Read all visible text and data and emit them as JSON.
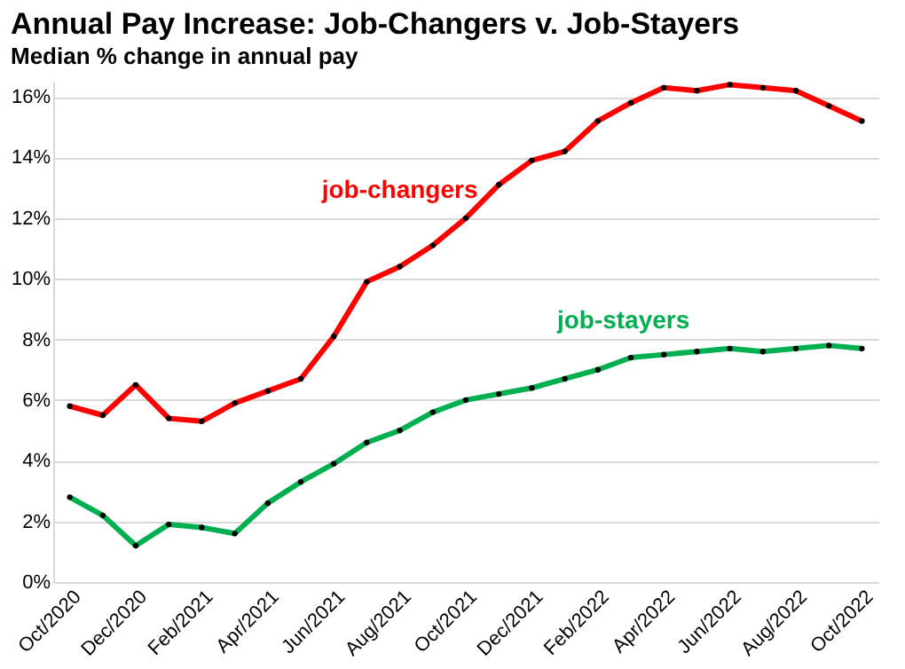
{
  "chart_data": {
    "type": "line",
    "title": "Annual Pay Increase: Job-Changers v. Job-Stayers",
    "subtitle": "Median % change in annual pay",
    "categories": [
      "Oct/2020",
      null,
      "Dec/2020",
      null,
      "Feb/2021",
      null,
      "Apr/2021",
      null,
      "Jun/2021",
      null,
      "Aug/2021",
      null,
      "Oct/2021",
      null,
      "Dec/2021",
      null,
      "Feb/2022",
      null,
      "Apr/2022",
      null,
      "Jun/2022",
      null,
      "Aug/2022",
      null,
      "Oct/2022"
    ],
    "series": [
      {
        "name": "job-changers",
        "color": "#ff0000",
        "values": [
          5.8,
          5.5,
          6.5,
          5.4,
          5.3,
          5.9,
          6.3,
          6.7,
          8.1,
          9.9,
          10.4,
          11.1,
          12.0,
          13.1,
          13.9,
          14.2,
          15.2,
          15.8,
          16.3,
          16.2,
          16.4,
          16.3,
          16.2,
          15.7,
          15.2
        ]
      },
      {
        "name": "job-stayers",
        "color": "#00b050",
        "values": [
          2.8,
          2.2,
          1.2,
          1.9,
          1.8,
          1.6,
          2.6,
          3.3,
          3.9,
          4.6,
          5.0,
          5.6,
          6.0,
          6.2,
          6.4,
          6.7,
          7.0,
          7.4,
          7.5,
          7.6,
          7.7,
          7.6,
          7.7,
          7.8,
          7.7
        ]
      }
    ],
    "ylim": [
      0,
      16.5
    ],
    "yticks": [
      {
        "value": 0,
        "label": "0%"
      },
      {
        "value": 2,
        "label": "2%"
      },
      {
        "value": 4,
        "label": "4%"
      },
      {
        "value": 6,
        "label": "6%"
      },
      {
        "value": 8,
        "label": "8%"
      },
      {
        "value": 10,
        "label": "10%"
      },
      {
        "value": 12,
        "label": "12%"
      },
      {
        "value": 14,
        "label": "14%"
      },
      {
        "value": 16,
        "label": "16%"
      }
    ],
    "grid": "y",
    "legend": false,
    "marker": "circle",
    "line_style": "solid"
  }
}
